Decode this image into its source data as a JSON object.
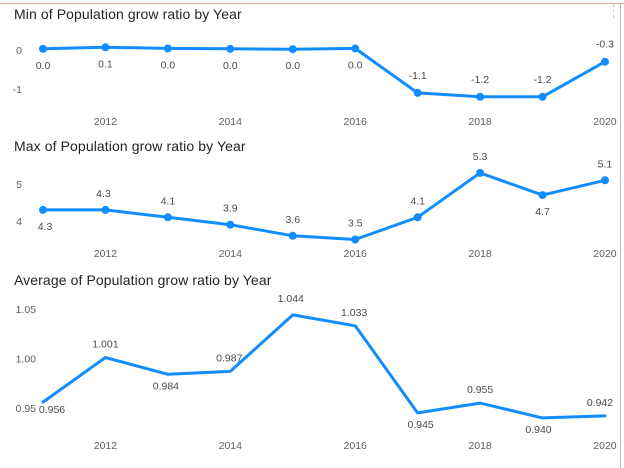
{
  "colors": {
    "line": "#118DFF",
    "text": "#252423",
    "axis": "#605e5c"
  },
  "chart_data": [
    {
      "type": "line",
      "title": "Min of Population grow ratio by Year",
      "x": [
        2011,
        2012,
        2013,
        2014,
        2015,
        2016,
        2017,
        2018,
        2019,
        2020
      ],
      "x_tick_labels": [
        "2012",
        "2014",
        "2016",
        "2018",
        "2020"
      ],
      "y_tick_labels": [
        "0",
        "-1"
      ],
      "values": [
        0.03,
        0.07,
        0.04,
        0.03,
        0.02,
        0.04,
        -1.1,
        -1.2,
        -1.2,
        -0.3
      ],
      "data_labels": [
        "0.0",
        "0.1",
        "0.0",
        "0.0",
        "0.0",
        "0.0",
        "-1.1",
        "-1.2",
        "-1.2",
        "-0.3"
      ],
      "markers": true
    },
    {
      "type": "line",
      "title": "Max of Population grow ratio by Year",
      "x": [
        2011,
        2012,
        2013,
        2014,
        2015,
        2016,
        2017,
        2018,
        2019,
        2020
      ],
      "x_tick_labels": [
        "2012",
        "2014",
        "2016",
        "2018",
        "2020"
      ],
      "y_tick_labels": [
        "5",
        "4"
      ],
      "values": [
        4.3,
        4.3,
        4.1,
        3.9,
        3.6,
        3.5,
        4.1,
        5.3,
        4.7,
        5.1
      ],
      "data_labels": [
        "4.3",
        "4.3",
        "4.1",
        "3.9",
        "3.6",
        "3.5",
        "4.1",
        "5.3",
        "4.7",
        "5.1"
      ],
      "markers": true
    },
    {
      "type": "line",
      "title": "Average of Population grow ratio by Year",
      "x": [
        2011,
        2012,
        2013,
        2014,
        2015,
        2016,
        2017,
        2018,
        2019,
        2020
      ],
      "x_tick_labels": [
        "2012",
        "2014",
        "2016",
        "2018",
        "2020"
      ],
      "y_tick_labels": [
        "1.05",
        "1.00",
        "0.95"
      ],
      "values": [
        0.956,
        1.001,
        0.984,
        0.987,
        1.044,
        1.033,
        0.945,
        0.955,
        0.94,
        0.942
      ],
      "data_labels": [
        "0.956",
        "1.001",
        "0.984",
        "0.987",
        "1.044",
        "1.033",
        "0.945",
        "0.955",
        "0.940",
        "0.942"
      ],
      "markers": false
    }
  ]
}
